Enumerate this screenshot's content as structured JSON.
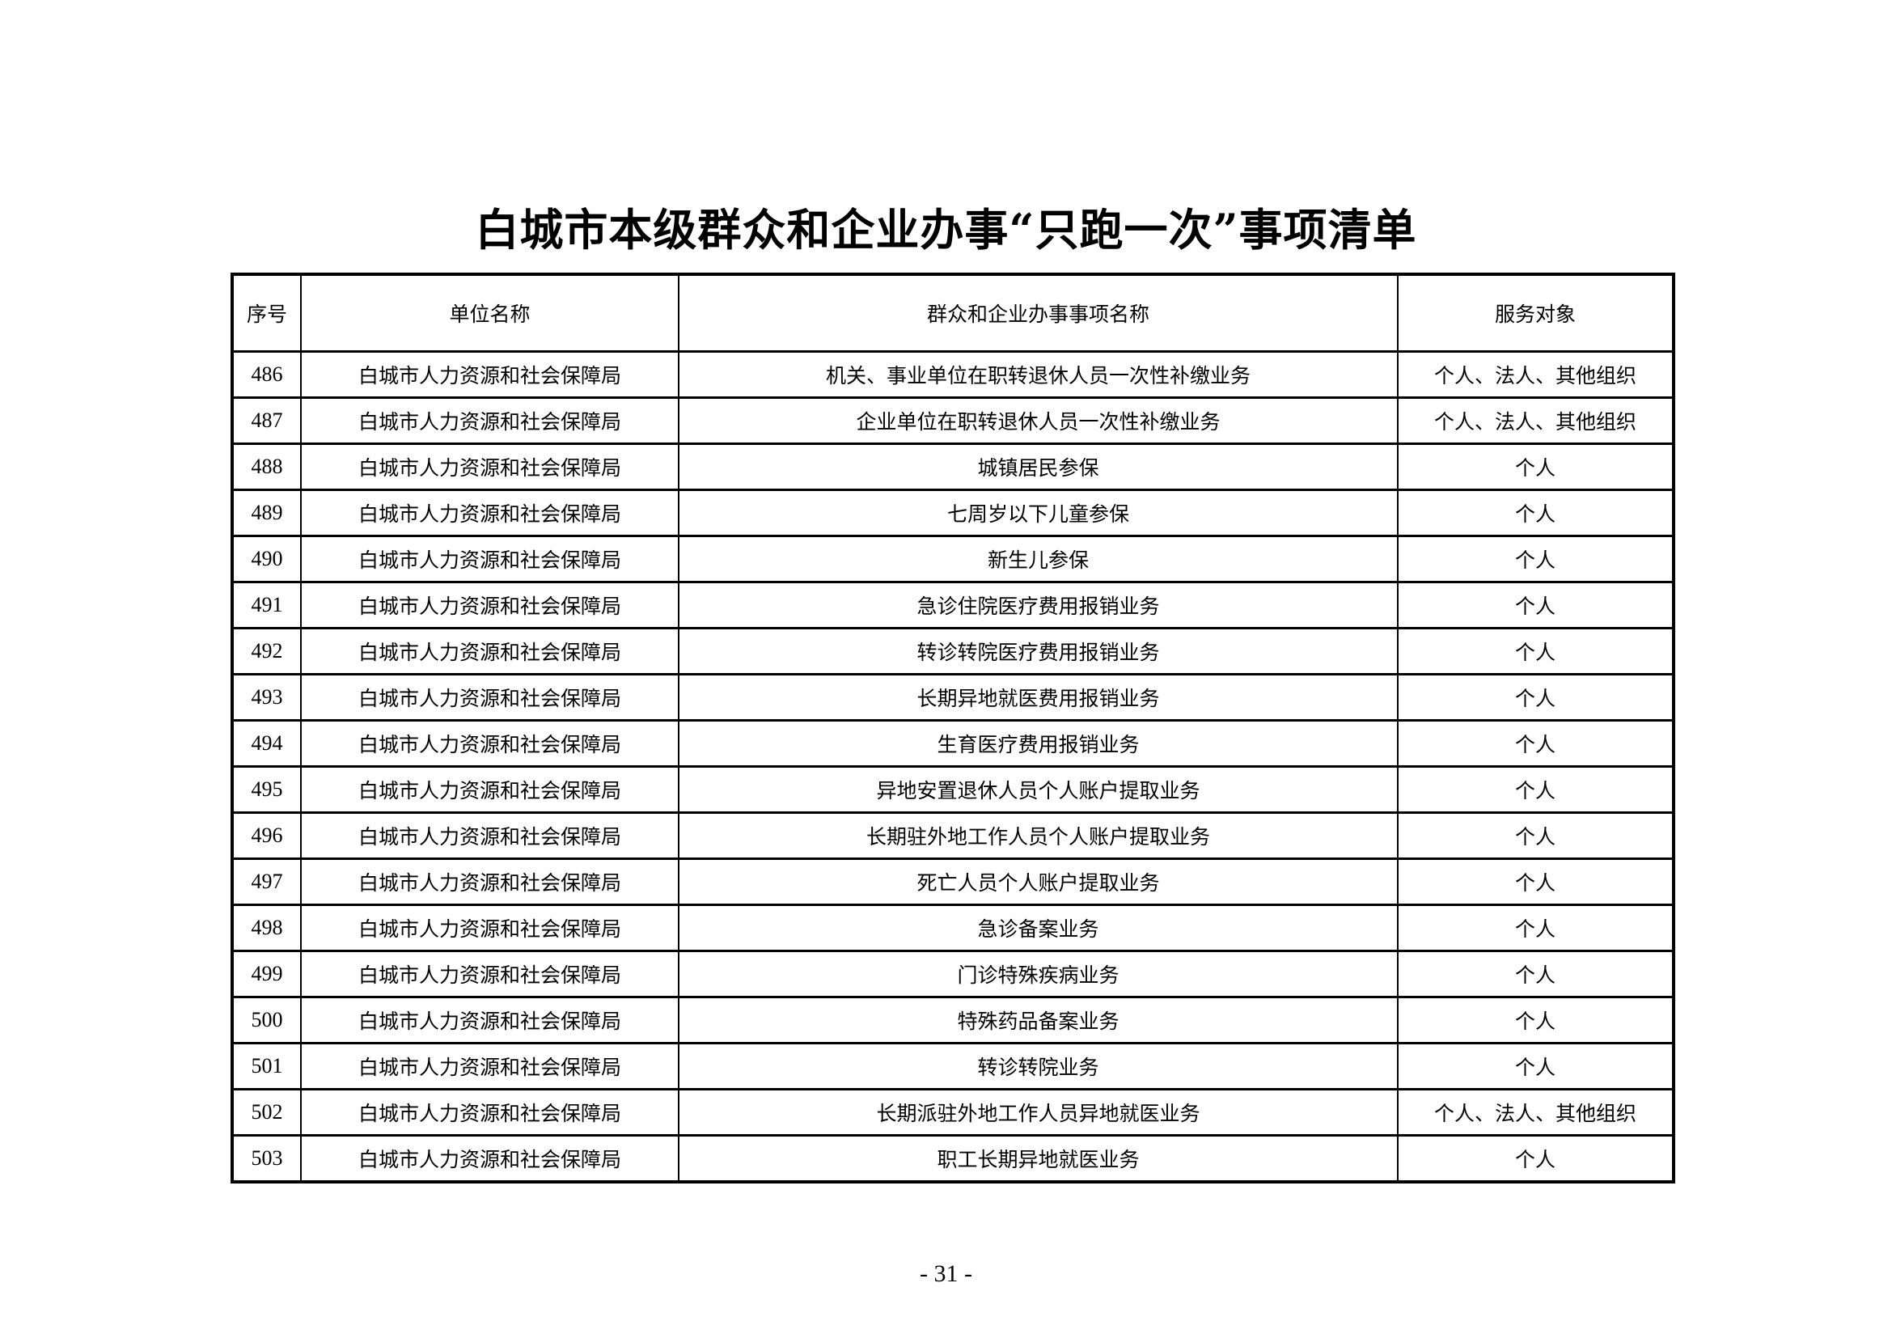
{
  "title": "白城市本级群众和企业办事“只跑一次”事项清单",
  "table": {
    "headers": [
      "序号",
      "单位名称",
      "群众和企业办事事项名称",
      "服务对象"
    ],
    "rows": [
      [
        "486",
        "白城市人力资源和社会保障局",
        "机关、事业单位在职转退休人员一次性补缴业务",
        "个人、法人、其他组织"
      ],
      [
        "487",
        "白城市人力资源和社会保障局",
        "企业单位在职转退休人员一次性补缴业务",
        "个人、法人、其他组织"
      ],
      [
        "488",
        "白城市人力资源和社会保障局",
        "城镇居民参保",
        "个人"
      ],
      [
        "489",
        "白城市人力资源和社会保障局",
        "七周岁以下儿童参保",
        "个人"
      ],
      [
        "490",
        "白城市人力资源和社会保障局",
        "新生儿参保",
        "个人"
      ],
      [
        "491",
        "白城市人力资源和社会保障局",
        "急诊住院医疗费用报销业务",
        "个人"
      ],
      [
        "492",
        "白城市人力资源和社会保障局",
        "转诊转院医疗费用报销业务",
        "个人"
      ],
      [
        "493",
        "白城市人力资源和社会保障局",
        "长期异地就医费用报销业务",
        "个人"
      ],
      [
        "494",
        "白城市人力资源和社会保障局",
        "生育医疗费用报销业务",
        "个人"
      ],
      [
        "495",
        "白城市人力资源和社会保障局",
        "异地安置退休人员个人账户提取业务",
        "个人"
      ],
      [
        "496",
        "白城市人力资源和社会保障局",
        "长期驻外地工作人员个人账户提取业务",
        "个人"
      ],
      [
        "497",
        "白城市人力资源和社会保障局",
        "死亡人员个人账户提取业务",
        "个人"
      ],
      [
        "498",
        "白城市人力资源和社会保障局",
        "急诊备案业务",
        "个人"
      ],
      [
        "499",
        "白城市人力资源和社会保障局",
        "门诊特殊疾病业务",
        "个人"
      ],
      [
        "500",
        "白城市人力资源和社会保障局",
        "特殊药品备案业务",
        "个人"
      ],
      [
        "501",
        "白城市人力资源和社会保障局",
        "转诊转院业务",
        "个人"
      ],
      [
        "502",
        "白城市人力资源和社会保障局",
        "长期派驻外地工作人员异地就医业务",
        "个人、法人、其他组织"
      ],
      [
        "503",
        "白城市人力资源和社会保障局",
        "职工长期异地就医业务",
        "个人"
      ]
    ]
  },
  "page_number": "- 31 -"
}
